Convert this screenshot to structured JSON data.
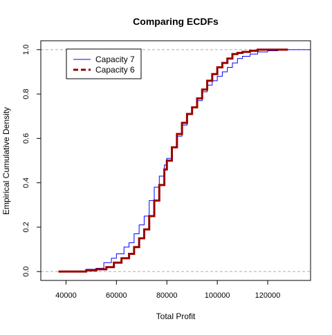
{
  "chart_data": {
    "type": "line",
    "subtype": "ecdf-step",
    "title": "Comparing ECDFs",
    "xlabel": "Total Profit",
    "ylabel": "Empirical Cumulative Density",
    "xlim": [
      30000,
      137000
    ],
    "ylim": [
      -0.04,
      1.04
    ],
    "x_ticks": [
      40000,
      60000,
      80000,
      100000,
      120000
    ],
    "x_tick_labels": [
      "40000",
      "60000",
      "80000",
      "100000",
      "120000"
    ],
    "y_ticks": [
      0.0,
      0.2,
      0.4,
      0.6,
      0.8,
      1.0
    ],
    "y_tick_labels": [
      "0.0",
      "0.2",
      "0.4",
      "0.6",
      "0.8",
      "1.0"
    ],
    "reference_lines": [
      0,
      1
    ],
    "legend": {
      "placement": "top-left"
    },
    "series": [
      {
        "name": "Capacity 7",
        "color": "#0000ff",
        "line_style": "solid",
        "x": [
          37000,
          48000,
          52000,
          55000,
          58000,
          60000,
          63000,
          65000,
          67000,
          69000,
          71000,
          73000,
          75000,
          77000,
          79000,
          80000,
          82000,
          84000,
          86000,
          88000,
          90000,
          92000,
          94000,
          96000,
          98000,
          100000,
          102000,
          104000,
          106000,
          108000,
          110000,
          113000,
          116000,
          120000,
          124000,
          128000,
          137000
        ],
        "y": [
          0.0,
          0.01,
          0.015,
          0.04,
          0.06,
          0.08,
          0.11,
          0.13,
          0.17,
          0.21,
          0.25,
          0.32,
          0.38,
          0.43,
          0.48,
          0.51,
          0.56,
          0.61,
          0.66,
          0.71,
          0.74,
          0.77,
          0.81,
          0.84,
          0.86,
          0.88,
          0.9,
          0.92,
          0.94,
          0.96,
          0.97,
          0.98,
          0.99,
          0.995,
          1.0,
          1.0,
          1.0
        ]
      },
      {
        "name": "Capacity 6",
        "color": "#990000",
        "line_style": "dashed",
        "x": [
          37000,
          48000,
          52000,
          56000,
          59000,
          62000,
          65000,
          67000,
          69000,
          71000,
          73000,
          75000,
          77000,
          79000,
          80000,
          82000,
          84000,
          86000,
          88000,
          90000,
          92000,
          94000,
          96000,
          98000,
          100000,
          102000,
          104000,
          106000,
          108000,
          110000,
          113000,
          116000,
          120000,
          124000,
          128000
        ],
        "y": [
          0.0,
          0.005,
          0.01,
          0.02,
          0.04,
          0.06,
          0.08,
          0.11,
          0.15,
          0.19,
          0.25,
          0.32,
          0.39,
          0.46,
          0.5,
          0.56,
          0.62,
          0.67,
          0.71,
          0.74,
          0.78,
          0.82,
          0.86,
          0.89,
          0.92,
          0.94,
          0.96,
          0.98,
          0.985,
          0.99,
          0.995,
          1.0,
          1.0,
          1.0,
          1.0
        ]
      }
    ]
  }
}
